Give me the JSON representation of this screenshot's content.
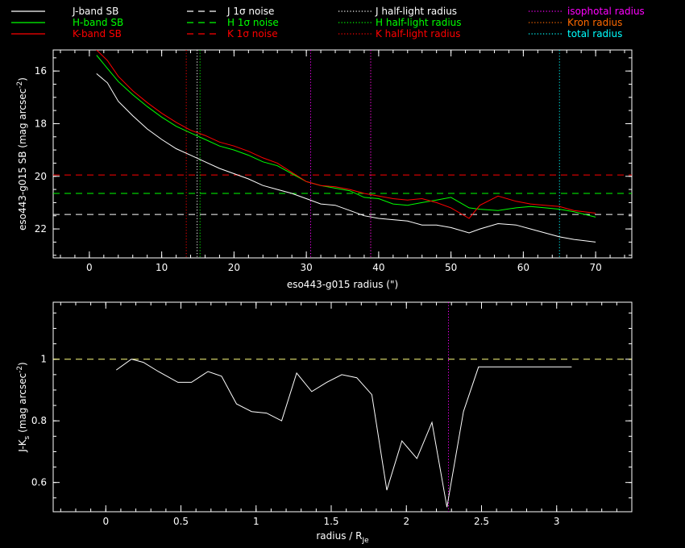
{
  "chart_data": [
    {
      "type": "line",
      "xlabel": "eso443-g015 radius (\")",
      "ylabel_main": "eso443-g015 SB (mag arcsec",
      "ylabel_sup": "-2",
      "ylabel_end": ")",
      "xlim": [
        -5,
        75
      ],
      "ylim": [
        23.1,
        15.2
      ],
      "y_inverted": true,
      "xticks": [
        0,
        10,
        20,
        30,
        40,
        50,
        60,
        70
      ],
      "yticks": [
        16,
        18,
        20,
        22
      ],
      "series": [
        {
          "name": "J-band SB",
          "color": "#ffffff",
          "x": [
            1,
            2.5,
            4,
            6,
            8,
            10,
            12,
            14,
            16,
            18,
            20,
            22,
            24,
            26,
            28,
            30,
            32,
            34,
            36,
            38,
            40,
            42,
            44,
            46,
            48,
            50,
            52.5,
            54,
            56.5,
            59,
            61,
            63,
            65,
            67,
            70
          ],
          "y": [
            16.1,
            16.45,
            17.15,
            17.7,
            18.2,
            18.6,
            18.95,
            19.2,
            19.45,
            19.7,
            19.9,
            20.1,
            20.35,
            20.5,
            20.65,
            20.85,
            21.05,
            21.1,
            21.3,
            21.5,
            21.6,
            21.65,
            21.7,
            21.85,
            21.85,
            21.95,
            22.15,
            22.0,
            21.8,
            21.85,
            22.0,
            22.15,
            22.3,
            22.4,
            22.5
          ]
        },
        {
          "name": "H-band SB",
          "color": "#00ff00",
          "x": [
            1,
            2.5,
            4,
            6,
            8,
            10,
            12,
            14,
            16,
            18,
            20,
            22,
            24,
            26,
            28,
            30,
            32,
            34,
            36,
            38,
            40,
            42,
            44,
            46,
            48,
            50,
            52.5,
            54,
            56.5,
            59,
            61,
            63,
            65,
            67,
            70
          ],
          "y": [
            15.4,
            15.9,
            16.4,
            16.9,
            17.35,
            17.75,
            18.1,
            18.35,
            18.6,
            18.85,
            19.0,
            19.2,
            19.45,
            19.6,
            19.9,
            20.2,
            20.35,
            20.45,
            20.55,
            20.8,
            20.85,
            21.05,
            21.1,
            21.0,
            20.9,
            20.8,
            21.2,
            21.25,
            21.3,
            21.2,
            21.15,
            21.2,
            21.25,
            21.35,
            21.55
          ]
        },
        {
          "name": "K-band SB",
          "color": "#ff0000",
          "x": [
            1,
            2.5,
            4,
            6,
            8,
            10,
            12,
            14,
            16,
            18,
            20,
            22,
            24,
            26,
            28,
            30,
            32,
            34,
            36,
            38,
            40,
            42,
            44,
            46,
            48,
            50,
            52.5,
            54,
            56.5,
            59,
            61,
            63,
            65,
            67,
            70
          ],
          "y": [
            15.2,
            15.6,
            16.2,
            16.75,
            17.2,
            17.6,
            17.95,
            18.25,
            18.45,
            18.7,
            18.85,
            19.05,
            19.3,
            19.5,
            19.85,
            20.2,
            20.35,
            20.4,
            20.5,
            20.65,
            20.75,
            20.85,
            20.9,
            20.85,
            21.0,
            21.2,
            21.6,
            21.1,
            20.75,
            20.95,
            21.05,
            21.1,
            21.15,
            21.3,
            21.4
          ]
        }
      ],
      "hlines": [
        {
          "name": "J 1σ noise",
          "color": "#ffffff",
          "y": 21.45
        },
        {
          "name": "H 1σ noise",
          "color": "#00ff00",
          "y": 20.65
        },
        {
          "name": "K 1σ noise",
          "color": "#ff0000",
          "y": 19.95
        }
      ],
      "vlines": [
        {
          "name": "J half-light radius",
          "color": "#ffffff",
          "x": 14.9
        },
        {
          "name": "H half-light radius",
          "color": "#00ff00",
          "x": 15.3
        },
        {
          "name": "K half-light radius",
          "color": "#ff0000",
          "x": 13.4
        },
        {
          "name": "isophotal radius",
          "color": "#ff00ff",
          "x": 30.6
        },
        {
          "name": "Kron radius",
          "color": "#ff6a00",
          "x": 38.9
        },
        {
          "name": "total radius",
          "color": "#00ffff",
          "x": 65.0
        }
      ],
      "vlines_extra": [
        {
          "color": "#ff00ff",
          "x": 38.9
        }
      ],
      "legend": [
        {
          "label": "J-band SB",
          "color": "#ffffff",
          "dash": "solid"
        },
        {
          "label": "H-band SB",
          "color": "#00ff00",
          "dash": "solid"
        },
        {
          "label": "K-band SB",
          "color": "#ff0000",
          "dash": "solid"
        },
        {
          "label": "J 1σ noise",
          "color": "#ffffff",
          "dash": "dashed"
        },
        {
          "label": "H 1σ noise",
          "color": "#00ff00",
          "dash": "dashed"
        },
        {
          "label": "K 1σ noise",
          "color": "#ff0000",
          "dash": "dashed"
        },
        {
          "label": "J half-light radius",
          "color": "#ffffff",
          "dash": "dotted"
        },
        {
          "label": "H half-light radius",
          "color": "#00ff00",
          "dash": "dotted"
        },
        {
          "label": "K half-light radius",
          "color": "#ff0000",
          "dash": "dotted"
        },
        {
          "label": "isophotal radius",
          "color": "#ff00ff",
          "dash": "dotted"
        },
        {
          "label": "Kron radius",
          "color": "#ff6a00",
          "dash": "dotted"
        },
        {
          "label": "total radius",
          "color": "#00ffff",
          "dash": "dotted"
        }
      ],
      "legend_placement": "top"
    },
    {
      "type": "line",
      "xlabel_main": "radius / R",
      "xlabel_sub": "Je",
      "ylabel_main": "J-K",
      "ylabel_sub": "s",
      "ylabel_mid": " (mag arcsec",
      "ylabel_sup": "-2",
      "ylabel_end": ")",
      "xlim": [
        -0.35,
        3.5
      ],
      "ylim": [
        0.505,
        1.185
      ],
      "xticks": [
        0,
        0.5,
        1,
        1.5,
        2,
        2.5,
        3
      ],
      "xtick_labels": [
        "0",
        "0.5",
        "1",
        "1.5",
        "2",
        "2.5",
        "3"
      ],
      "yticks": [
        0.6,
        0.8,
        1
      ],
      "ytick_labels": [
        "0.6",
        "0.8",
        "1"
      ],
      "series": [
        {
          "color": "#ffffff",
          "x": [
            0.07,
            0.17,
            0.25,
            0.35,
            0.48,
            0.57,
            0.68,
            0.77,
            0.87,
            0.97,
            1.07,
            1.17,
            1.27,
            1.37,
            1.47,
            1.57,
            1.67,
            1.77,
            1.87,
            1.97,
            2.07,
            2.17,
            2.27,
            2.38,
            2.48,
            2.58,
            2.68,
            2.78,
            2.88,
            2.98,
            3.1
          ],
          "y": [
            0.965,
            1.0,
            0.99,
            0.96,
            0.925,
            0.925,
            0.96,
            0.945,
            0.855,
            0.83,
            0.825,
            0.8,
            0.955,
            0.895,
            0.925,
            0.95,
            0.94,
            0.885,
            0.575,
            0.735,
            0.678,
            0.795,
            0.52,
            0.83,
            0.975,
            0.975,
            0.975,
            0.975,
            0.975,
            0.975,
            0.975
          ]
        }
      ],
      "hlines": [
        {
          "color": "#ffff80",
          "y": 1.0
        }
      ],
      "vlines": [
        {
          "color": "#ff00ff",
          "x": 2.28
        }
      ]
    }
  ]
}
